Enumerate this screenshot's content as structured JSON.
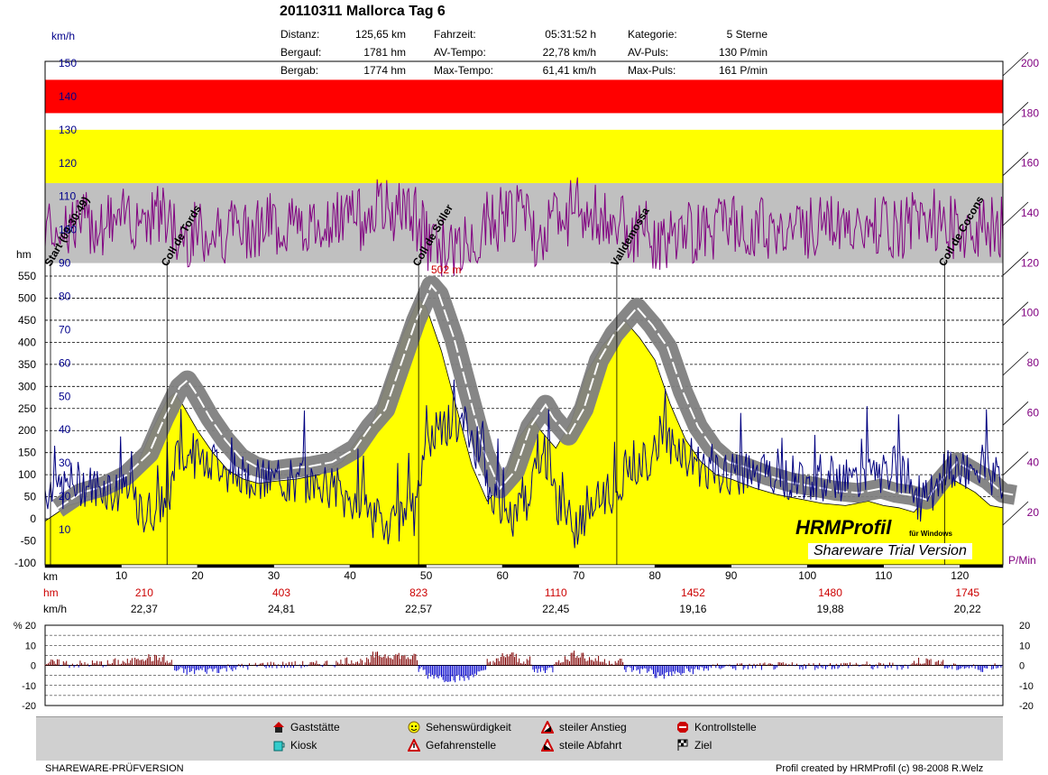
{
  "header": {
    "title": "20110311 Mallorca Tag 6",
    "stats": [
      {
        "label": "Distanz:",
        "value": "125,65 km"
      },
      {
        "label": "Bergauf:",
        "value": "1781 hm"
      },
      {
        "label": "Bergab:",
        "value": "1774 hm"
      },
      {
        "label": "Fahrzeit:",
        "value": "05:31:52 h"
      },
      {
        "label": "AV-Tempo:",
        "value": "22,78 km/h"
      },
      {
        "label": "Max-Tempo:",
        "value": "61,41 km/h"
      },
      {
        "label": "Kategorie:",
        "value": "5 Sterne"
      },
      {
        "label": "AV-Puls:",
        "value": "130 P/min"
      },
      {
        "label": "Max-Puls:",
        "value": "161 P/min"
      }
    ]
  },
  "chart_data": {
    "type": "area",
    "units": {
      "speed": "km/h",
      "elevation": "hm",
      "distance": "km",
      "pulse": "P/Min",
      "grade": "%"
    },
    "speed_ticks": [
      150,
      140,
      130,
      120,
      110,
      100,
      90,
      80,
      70,
      60,
      50,
      40,
      30,
      20,
      10
    ],
    "elevation_ticks": [
      550,
      500,
      450,
      400,
      350,
      300,
      250,
      200,
      150,
      100,
      50,
      0,
      -50,
      -100
    ],
    "pulse_ticks": [
      200,
      180,
      160,
      140,
      120,
      100,
      80,
      60,
      40,
      20
    ],
    "km_ticks": [
      10,
      20,
      30,
      40,
      50,
      60,
      70,
      80,
      90,
      100,
      110,
      120
    ],
    "hm_cumulative": [
      {
        "km": 13,
        "value": "210"
      },
      {
        "km": 31,
        "value": "403"
      },
      {
        "km": 49,
        "value": "823"
      },
      {
        "km": 67,
        "value": "1110"
      },
      {
        "km": 85,
        "value": "1452"
      },
      {
        "km": 103,
        "value": "1480"
      },
      {
        "km": 121,
        "value": "1745"
      }
    ],
    "avg_speed_labels": [
      {
        "km": 13,
        "value": "22,37"
      },
      {
        "km": 31,
        "value": "24,81"
      },
      {
        "km": 49,
        "value": "22,57"
      },
      {
        "km": 67,
        "value": "22,45"
      },
      {
        "km": 85,
        "value": "19,16"
      },
      {
        "km": 103,
        "value": "19,88"
      },
      {
        "km": 121,
        "value": "20,22"
      }
    ],
    "elevation_profile": [
      [
        0,
        -5
      ],
      [
        3,
        30
      ],
      [
        6,
        45
      ],
      [
        9,
        70
      ],
      [
        12,
        120
      ],
      [
        14,
        200
      ],
      [
        16,
        270
      ],
      [
        17,
        285
      ],
      [
        18,
        260
      ],
      [
        20,
        200
      ],
      [
        22,
        150
      ],
      [
        24,
        110
      ],
      [
        26,
        90
      ],
      [
        28,
        80
      ],
      [
        30,
        85
      ],
      [
        33,
        90
      ],
      [
        36,
        100
      ],
      [
        39,
        130
      ],
      [
        41,
        180
      ],
      [
        43,
        220
      ],
      [
        45,
        320
      ],
      [
        47,
        420
      ],
      [
        49,
        500
      ],
      [
        50,
        480
      ],
      [
        52,
        380
      ],
      [
        54,
        250
      ],
      [
        56,
        120
      ],
      [
        58,
        40
      ],
      [
        60,
        80
      ],
      [
        62,
        180
      ],
      [
        64,
        230
      ],
      [
        65,
        200
      ],
      [
        67,
        160
      ],
      [
        69,
        220
      ],
      [
        71,
        330
      ],
      [
        73,
        390
      ],
      [
        75,
        430
      ],
      [
        76,
        450
      ],
      [
        78,
        410
      ],
      [
        80,
        360
      ],
      [
        82,
        260
      ],
      [
        84,
        180
      ],
      [
        86,
        130
      ],
      [
        88,
        100
      ],
      [
        90,
        90
      ],
      [
        93,
        70
      ],
      [
        96,
        55
      ],
      [
        99,
        45
      ],
      [
        102,
        35
      ],
      [
        105,
        30
      ],
      [
        108,
        40
      ],
      [
        110,
        30
      ],
      [
        112,
        25
      ],
      [
        114,
        15
      ],
      [
        116,
        60
      ],
      [
        118,
        100
      ],
      [
        120,
        80
      ],
      [
        122,
        60
      ],
      [
        124,
        30
      ],
      [
        125.65,
        25
      ]
    ],
    "speed_zones": [
      {
        "from": 135,
        "to": 145,
        "color": "#ff0000"
      },
      {
        "from": 114,
        "to": 130,
        "color": "#ffff00"
      },
      {
        "from": 90,
        "to": 114,
        "color": "#c0c0c0"
      }
    ],
    "places": [
      {
        "km": 0,
        "name": "Start (09:30:49)"
      },
      {
        "km": 16,
        "name": "Coll de Tords"
      },
      {
        "km": 49,
        "name": "Coll de Sóller"
      },
      {
        "km": 75,
        "name": "Valldemossa"
      },
      {
        "km": 118,
        "name": "Coll de Cocons"
      }
    ],
    "max_elev_label": "502 m",
    "grade_ticks": [
      20,
      10,
      0,
      -10,
      -20
    ],
    "grade_ticks_text": [
      "% 20",
      "10",
      "0",
      "-10",
      "-20"
    ],
    "colors": {
      "speed_line": "#000080",
      "pulse_line": "#800080",
      "elevation_fill": "#ffff00",
      "grade_up": "#800000",
      "grade_down": "#0000cc",
      "band": "#808080"
    }
  },
  "watermark": {
    "brand": "HRMProfil",
    "sub": "für Windows",
    "trial": "Shareware Trial  Version"
  },
  "legend": [
    {
      "icon": "gaststaette-icon",
      "label": "Gaststätte"
    },
    {
      "icon": "kiosk-icon",
      "label": "Kiosk"
    },
    {
      "icon": "sehenswuerdigkeit-icon",
      "label": "Sehenswürdigkeit"
    },
    {
      "icon": "gefahrenstelle-icon",
      "label": "Gefahrenstelle"
    },
    {
      "icon": "steiler-anstieg-icon",
      "label": "steiler Anstieg"
    },
    {
      "icon": "steile-abfahrt-icon",
      "label": "steile Abfahrt"
    },
    {
      "icon": "kontrollstelle-icon",
      "label": "Kontrollstelle"
    },
    {
      "icon": "ziel-icon",
      "label": "Ziel"
    }
  ],
  "footer": {
    "left": "SHAREWARE-PRÜFVERSION",
    "right": "Profil created by HRMProfil (c) 98-2008 R.Welz"
  }
}
